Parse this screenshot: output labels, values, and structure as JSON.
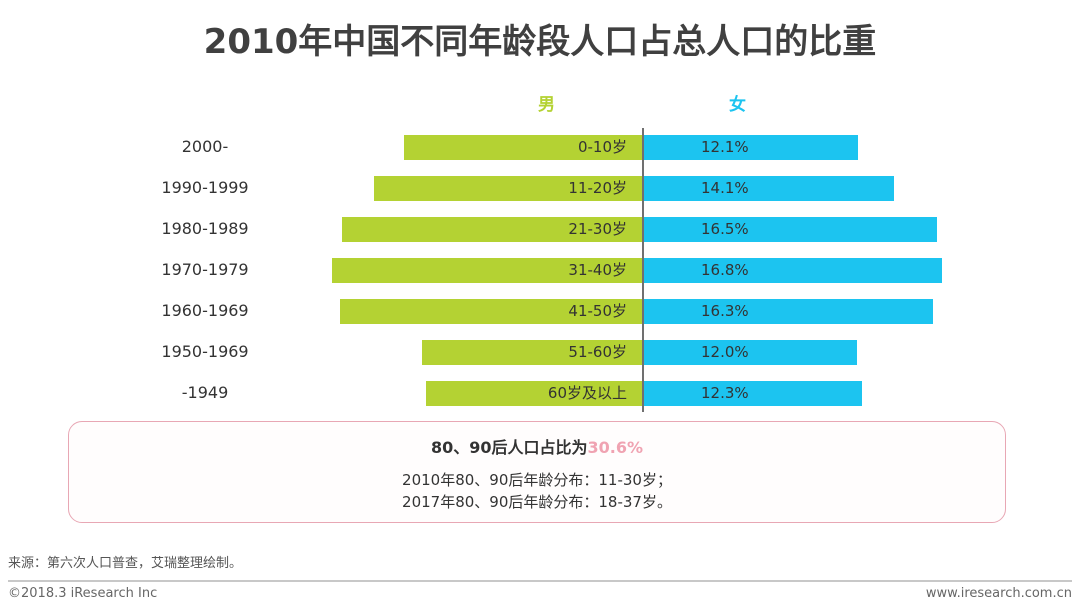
{
  "chart_data": {
    "type": "bar",
    "orientation": "horizontal-diverging",
    "title": "2010年中国不同年龄段人口占总人口的比重",
    "legend": [
      "男",
      "女"
    ],
    "categories": [
      "2000-",
      "1990-1999",
      "1980-1989",
      "1970-1979",
      "1960-1969",
      "1950-1969",
      "-1949"
    ],
    "age_labels": [
      "0-10岁",
      "11-20岁",
      "21-30岁",
      "31-40岁",
      "41-50岁",
      "51-60岁",
      "60岁及以上"
    ],
    "series": [
      {
        "name": "男",
        "values": [
          13.4,
          15.1,
          16.9,
          17.5,
          17.0,
          12.4,
          12.2
        ],
        "labeled": false
      },
      {
        "name": "女",
        "values": [
          12.1,
          14.1,
          16.5,
          16.8,
          16.3,
          12.0,
          12.3
        ],
        "labels": [
          "12.1%",
          "14.1%",
          "16.5%",
          "16.8%",
          "16.3%",
          "12.0%",
          "12.3%"
        ]
      }
    ],
    "unit": "%",
    "xlim": [
      0,
      18
    ],
    "colors": {
      "male": "#b4d233",
      "female": "#1cc4f0",
      "axis": "#707070"
    }
  },
  "callout": {
    "headline_prefix": "80、90后人口占比为",
    "headline_value": "30.6%",
    "line1": "2010年80、90后年龄分布：11-30岁；",
    "line2": "2017年80、90后年龄分布：18-37岁。",
    "highlight_color": "#f0a3b2",
    "border_color": "#e8a7b4"
  },
  "footer": {
    "source": "来源：第六次人口普查，艾瑞整理绘制。",
    "copyright": "©2018.3 iResearch Inc",
    "website": "www.iresearch.com.cn"
  }
}
